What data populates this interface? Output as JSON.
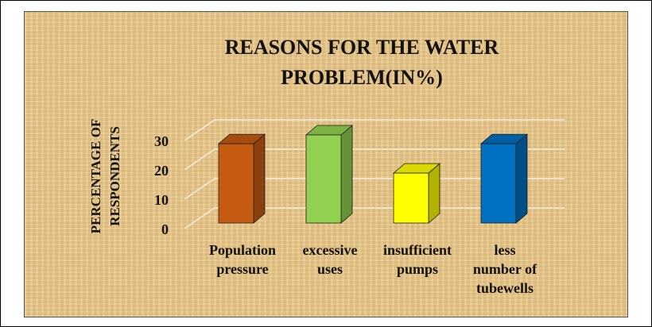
{
  "chart_data": {
    "type": "bar3d",
    "title": [
      "REASONS FOR THE WATER",
      "PROBLEM(IN%)"
    ],
    "y_label": [
      "PERCENTAGE OF",
      "RESPONDENTS"
    ],
    "categories": [
      [
        "Population",
        "pressure"
      ],
      [
        "excessive",
        "uses"
      ],
      [
        "insufficient",
        "pumps"
      ],
      [
        "less",
        "number of",
        "tubewells"
      ]
    ],
    "values": [
      27,
      30,
      17,
      27
    ],
    "colors": [
      "#c55a11",
      "#92d050",
      "#ffff00",
      "#0070c0"
    ],
    "ylim": [
      0,
      30
    ],
    "yticks": [
      0,
      10,
      20,
      30
    ],
    "grid": true
  }
}
